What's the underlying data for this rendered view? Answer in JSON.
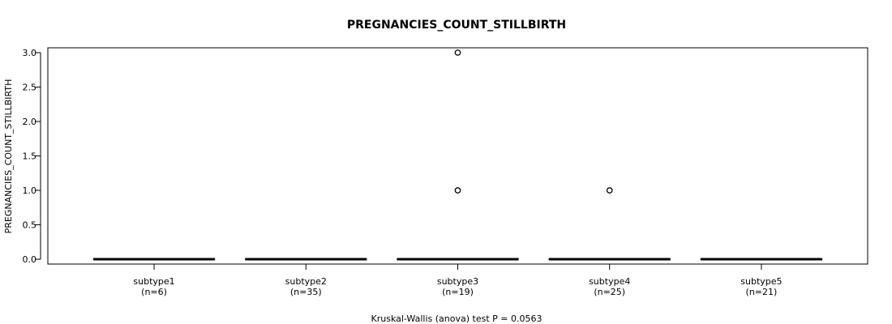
{
  "chart_data": {
    "type": "boxplot",
    "title": "PREGNANCIES_COUNT_STILLBIRTH",
    "ylabel": "PREGNANCIES_COUNT_STILLBIRTH",
    "xlabel": "Kruskal-Wallis (anova) test P = 0.0563",
    "ylim": [
      -0.07,
      3.07
    ],
    "yticks": [
      "0.0",
      "0.5",
      "1.0",
      "1.5",
      "2.0",
      "2.5",
      "3.0"
    ],
    "grid": false,
    "groups": [
      {
        "name": "subtype1",
        "n_label": "(n=6)",
        "min": 0,
        "q1": 0,
        "median": 0,
        "q3": 0,
        "max": 0,
        "outliers": []
      },
      {
        "name": "subtype2",
        "n_label": "(n=35)",
        "min": 0,
        "q1": 0,
        "median": 0,
        "q3": 0,
        "max": 0,
        "outliers": []
      },
      {
        "name": "subtype3",
        "n_label": "(n=19)",
        "min": 0,
        "q1": 0,
        "median": 0,
        "q3": 0,
        "max": 0,
        "outliers": [
          1,
          3
        ]
      },
      {
        "name": "subtype4",
        "n_label": "(n=25)",
        "min": 0,
        "q1": 0,
        "median": 0,
        "q3": 0,
        "max": 0,
        "outliers": [
          1
        ]
      },
      {
        "name": "subtype5",
        "n_label": "(n=21)",
        "min": 0,
        "q1": 0,
        "median": 0,
        "q3": 0,
        "max": 0,
        "outliers": []
      }
    ]
  }
}
